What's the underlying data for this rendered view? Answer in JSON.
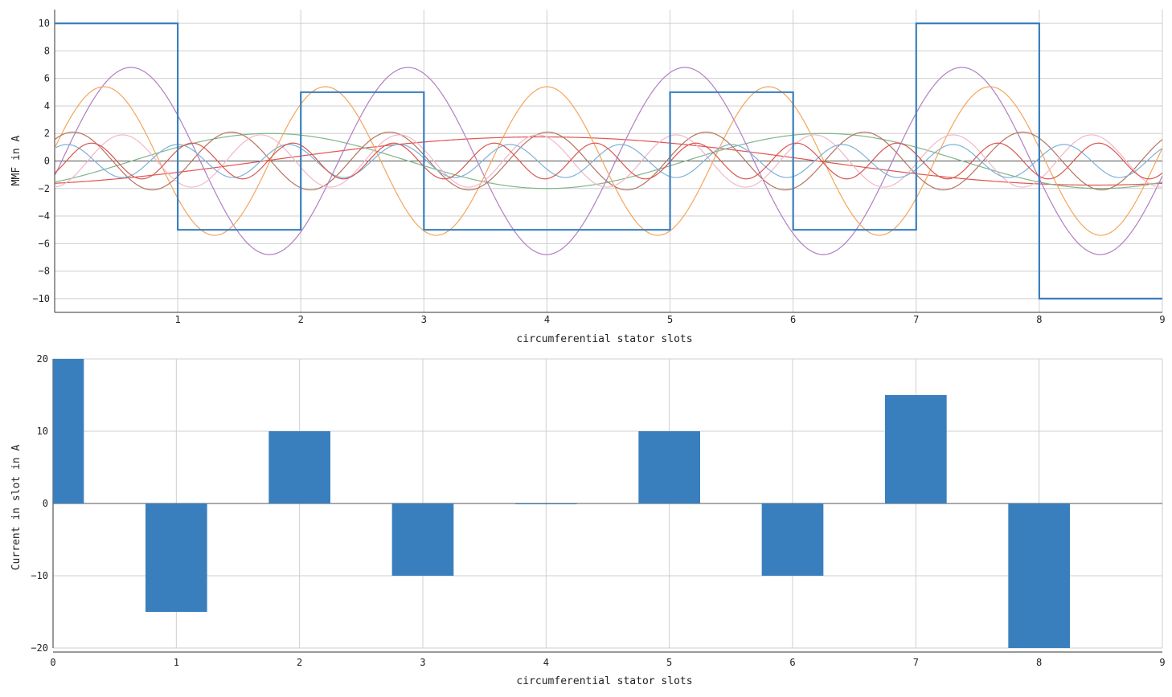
{
  "chart_data": [
    {
      "type": "line",
      "title": "",
      "xlabel": "circumferential stator slots",
      "ylabel": "MMF in A",
      "xlim": [
        0,
        9
      ],
      "ylim": [
        -11,
        11
      ],
      "xticks": [
        1,
        2,
        3,
        4,
        5,
        6,
        7,
        8,
        9
      ],
      "yticks": [
        -10,
        -8,
        -6,
        -4,
        -2,
        0,
        2,
        4,
        6,
        8,
        10
      ],
      "grid": true,
      "series": [
        {
          "kind": "step",
          "color": "#3a7fbd",
          "x": [
            0,
            1,
            1,
            2,
            2,
            3,
            3,
            5,
            5,
            6,
            6,
            7,
            7,
            8,
            8,
            9
          ],
          "y": [
            10,
            10,
            -5,
            -5,
            5,
            5,
            -5,
            -5,
            5,
            5,
            -5,
            -5,
            10,
            10,
            -10,
            -10
          ]
        },
        {
          "kind": "harmonic",
          "color": "#e0544f",
          "order": 1,
          "amplitude": 1.75,
          "phase_slot": 3.95
        },
        {
          "kind": "harmonic",
          "color": "#7fb58a",
          "order": 2,
          "amplitude": 2.0,
          "phase_slot": 1.75
        },
        {
          "kind": "harmonic",
          "color": "#b07fc4",
          "order": 4,
          "amplitude": 6.8,
          "phase_slot": 0.62
        },
        {
          "kind": "harmonic",
          "color": "#f4a55a",
          "order": 5,
          "amplitude": 5.4,
          "phase_slot": 0.4
        },
        {
          "kind": "harmonic",
          "color": "#b5735f",
          "order": 7,
          "amplitude": 2.1,
          "phase_slot": 0.15
        },
        {
          "kind": "harmonic",
          "color": "#f4b6c8",
          "order": 8,
          "amplitude": 1.9,
          "phase_slot": 0.55
        },
        {
          "kind": "harmonic",
          "color": "#7fb2d8",
          "order": 10,
          "amplitude": 1.2,
          "phase_slot": 0.1
        },
        {
          "kind": "harmonic",
          "color": "#d9564f",
          "order": 11,
          "amplitude": 1.3,
          "phase_slot": 0.3
        }
      ]
    },
    {
      "type": "bar",
      "title": "",
      "xlabel": "circumferential stator slots",
      "ylabel": "Current in slot in A",
      "xlim": [
        0,
        9
      ],
      "ylim": [
        -20,
        20
      ],
      "xticks": [
        0,
        1,
        2,
        3,
        4,
        5,
        6,
        7,
        8,
        9
      ],
      "yticks": [
        -20,
        -10,
        0,
        10,
        20
      ],
      "grid": true,
      "color": "#3a7fbd",
      "categories": [
        0,
        1,
        2,
        3,
        4,
        5,
        6,
        7,
        8
      ],
      "values": [
        20,
        -15,
        10,
        -10,
        0,
        10,
        -10,
        15,
        -20
      ]
    }
  ]
}
